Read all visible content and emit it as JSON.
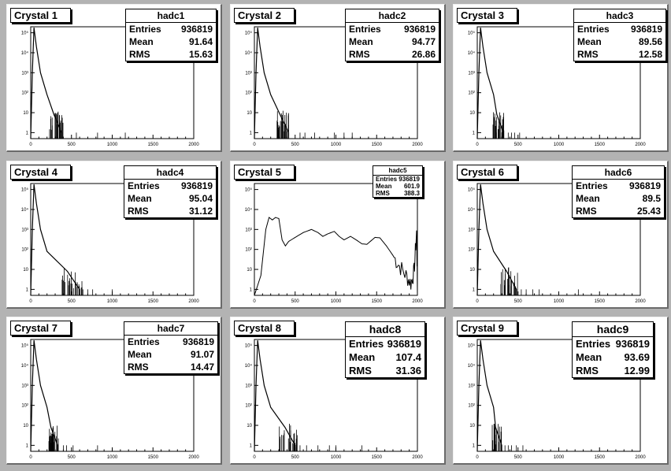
{
  "pads": [
    {
      "title": "Crystal 1",
      "stats": {
        "name": "hadc1",
        "rows": [
          {
            "label": "Entries",
            "value": "936819"
          },
          {
            "label": "Mean",
            "value": "91.64"
          },
          {
            "label": "RMS",
            "value": "15.63"
          }
        ]
      }
    },
    {
      "title": "Crystal 2",
      "stats": {
        "name": "hadc2",
        "rows": [
          {
            "label": "Entries",
            "value": "936819"
          },
          {
            "label": "Mean",
            "value": "94.77"
          },
          {
            "label": "RMS",
            "value": "26.86"
          }
        ]
      }
    },
    {
      "title": "Crystal 3",
      "stats": {
        "name": "hadc3",
        "rows": [
          {
            "label": "Entries",
            "value": "936819"
          },
          {
            "label": "Mean",
            "value": "89.56"
          },
          {
            "label": "RMS",
            "value": "12.58"
          }
        ]
      }
    },
    {
      "title": "Crystal 4",
      "stats": {
        "name": "hadc4",
        "rows": [
          {
            "label": "Entries",
            "value": "936819"
          },
          {
            "label": "Mean",
            "value": "95.04"
          },
          {
            "label": "RMS",
            "value": "31.12"
          }
        ]
      }
    },
    {
      "title": "Crystal 5",
      "stats": {
        "name": "hadc5",
        "rows": [
          {
            "label": "Entries",
            "value": "936819"
          },
          {
            "label": "Mean",
            "value": "601.9"
          },
          {
            "label": "RMS",
            "value": "388.3"
          }
        ]
      }
    },
    {
      "title": "Crystal 6",
      "stats": {
        "name": "hadc6",
        "rows": [
          {
            "label": "Entries",
            "value": "936819"
          },
          {
            "label": "Mean",
            "value": "89.5"
          },
          {
            "label": "RMS",
            "value": "25.43"
          }
        ]
      }
    },
    {
      "title": "Crystal 7",
      "stats": {
        "name": "hadc7",
        "rows": [
          {
            "label": "Entries",
            "value": "936819"
          },
          {
            "label": "Mean",
            "value": "91.07"
          },
          {
            "label": "RMS",
            "value": "14.47"
          }
        ]
      }
    },
    {
      "title": "Crystal 8",
      "stats": {
        "name": "hadc8",
        "rows": [
          {
            "label": "Entries",
            "value": "936819"
          },
          {
            "label": "Mean",
            "value": "107.4"
          },
          {
            "label": "RMS",
            "value": "31.36"
          }
        ]
      }
    },
    {
      "title": "Crystal 9",
      "stats": {
        "name": "hadc9",
        "rows": [
          {
            "label": "Entries",
            "value": "936819"
          },
          {
            "label": "Mean",
            "value": "93.69"
          },
          {
            "label": "RMS",
            "value": "12.99"
          }
        ]
      }
    }
  ],
  "chart_data": [
    {
      "type": "histogram",
      "name": "hadc1",
      "xlim": [
        0,
        2000
      ],
      "ylog": true,
      "xticks": [
        "0",
        "500",
        "1000",
        "1500",
        "2000"
      ],
      "yticks": [
        "1",
        "10",
        "10²",
        "10³",
        "10⁴",
        "10⁵"
      ],
      "peak_x": 40,
      "peak_value": 180000,
      "tail_end_x": 380,
      "outliers_x": [
        560,
        820,
        1160
      ]
    },
    {
      "type": "histogram",
      "name": "hadc2",
      "xlim": [
        0,
        2000
      ],
      "ylog": true,
      "xticks": [
        "0",
        "500",
        "1000",
        "1500",
        "2000"
      ],
      "yticks": [
        "1",
        "10",
        "10²",
        "10³",
        "10⁴",
        "10⁵"
      ],
      "peak_x": 40,
      "peak_value": 180000,
      "tail_end_x": 420,
      "outliers_x": [
        560,
        620,
        740,
        980,
        1100,
        1200
      ]
    },
    {
      "type": "histogram",
      "name": "hadc3",
      "xlim": [
        0,
        2000
      ],
      "ylog": true,
      "xticks": [
        "0",
        "500",
        "1000",
        "1500",
        "2000"
      ],
      "yticks": [
        "1",
        "10",
        "10²",
        "10³",
        "10⁴",
        "10⁵"
      ],
      "peak_x": 40,
      "peak_value": 180000,
      "tail_end_x": 320,
      "outliers_x": [
        380,
        420,
        460,
        520
      ]
    },
    {
      "type": "histogram",
      "name": "hadc4",
      "xlim": [
        0,
        2000
      ],
      "ylog": true,
      "xticks": [
        "0",
        "500",
        "1000",
        "1500",
        "2000"
      ],
      "yticks": [
        "1",
        "10",
        "10²",
        "10³",
        "10⁴",
        "10⁵"
      ],
      "peak_x": 40,
      "peak_value": 180000,
      "tail_end_x": 600,
      "outliers_x": [
        640,
        700,
        760,
        1000
      ]
    },
    {
      "type": "histogram",
      "name": "hadc5",
      "xlim": [
        0,
        2000
      ],
      "ylog": true,
      "xticks": [
        "0",
        "500",
        "1000",
        "1500",
        "2000"
      ],
      "yticks": [
        "1",
        "10",
        "10²",
        "10³",
        "10⁴",
        "10⁵"
      ],
      "curve": [
        [
          0,
          0.5
        ],
        [
          80,
          5
        ],
        [
          140,
          1000
        ],
        [
          180,
          4000
        ],
        [
          220,
          3000
        ],
        [
          260,
          4000
        ],
        [
          300,
          3500
        ],
        [
          340,
          300
        ],
        [
          380,
          150
        ],
        [
          420,
          250
        ],
        [
          500,
          400
        ],
        [
          600,
          700
        ],
        [
          700,
          1000
        ],
        [
          780,
          700
        ],
        [
          840,
          450
        ],
        [
          900,
          600
        ],
        [
          980,
          800
        ],
        [
          1040,
          450
        ],
        [
          1100,
          300
        ],
        [
          1180,
          450
        ],
        [
          1260,
          280
        ],
        [
          1320,
          190
        ],
        [
          1380,
          180
        ],
        [
          1480,
          400
        ],
        [
          1540,
          380
        ],
        [
          1620,
          150
        ],
        [
          1700,
          50
        ],
        [
          1780,
          15
        ],
        [
          1860,
          5
        ],
        [
          1920,
          2
        ],
        [
          1960,
          8
        ],
        [
          1990,
          800
        ],
        [
          2000,
          1
        ]
      ]
    },
    {
      "type": "histogram",
      "name": "hadc6",
      "xlim": [
        0,
        2000
      ],
      "ylog": true,
      "xticks": [
        "0",
        "500",
        "1000",
        "1500",
        "2000"
      ],
      "yticks": [
        "1",
        "10",
        "10²",
        "10³",
        "10⁴",
        "10⁵"
      ],
      "peak_x": 40,
      "peak_value": 180000,
      "tail_end_x": 480,
      "outliers_x": [
        540,
        600,
        680,
        760,
        1240
      ]
    },
    {
      "type": "histogram",
      "name": "hadc7",
      "xlim": [
        0,
        2000
      ],
      "ylog": true,
      "xticks": [
        "0",
        "500",
        "1000",
        "1500",
        "2000"
      ],
      "yticks": [
        "1",
        "10",
        "10²",
        "10³",
        "10⁴",
        "10⁵"
      ],
      "peak_x": 40,
      "peak_value": 180000,
      "tail_end_x": 330,
      "outliers_x": [
        400,
        440,
        520,
        820
      ]
    },
    {
      "type": "histogram",
      "name": "hadc8",
      "xlim": [
        0,
        2000
      ],
      "ylog": true,
      "xticks": [
        "0",
        "500",
        "1000",
        "1500",
        "2000"
      ],
      "yticks": [
        "1",
        "10",
        "10²",
        "10³",
        "10⁴",
        "10⁵"
      ],
      "peak_x": 40,
      "peak_value": 180000,
      "tail_end_x": 500,
      "outliers_x": [
        560,
        640,
        780,
        920,
        1000,
        1320
      ]
    },
    {
      "type": "histogram",
      "name": "hadc9",
      "xlim": [
        0,
        2000
      ],
      "ylog": true,
      "xticks": [
        "0",
        "500",
        "1000",
        "1500",
        "2000"
      ],
      "yticks": [
        "1",
        "10",
        "10²",
        "10³",
        "10⁴",
        "10⁵"
      ],
      "peak_x": 40,
      "peak_value": 180000,
      "tail_end_x": 300,
      "outliers_x": [
        340,
        380,
        420,
        480,
        560
      ]
    }
  ]
}
